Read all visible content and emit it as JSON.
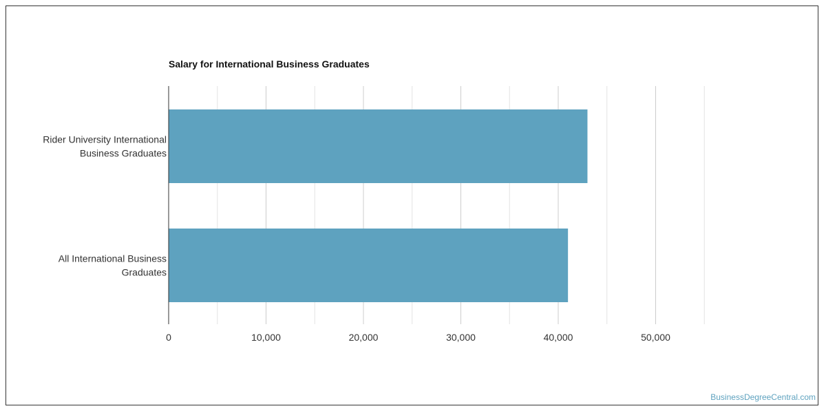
{
  "chart_data": {
    "type": "bar",
    "orientation": "horizontal",
    "title": "Salary for International Business Graduates",
    "categories": [
      [
        "Rider University International",
        "Business Graduates"
      ],
      [
        "All International Business",
        "Graduates"
      ]
    ],
    "values": [
      43000,
      41000
    ],
    "x_ticks": [
      0,
      10000,
      20000,
      30000,
      40000,
      50000
    ],
    "x_tick_labels": [
      "0",
      "10,000",
      "20,000",
      "30,000",
      "40,000",
      "50,000"
    ],
    "xlim": [
      0,
      60000
    ],
    "bar_color": "#5ea2bf",
    "grid": true
  },
  "credit": "BusinessDegreeCentral.com"
}
